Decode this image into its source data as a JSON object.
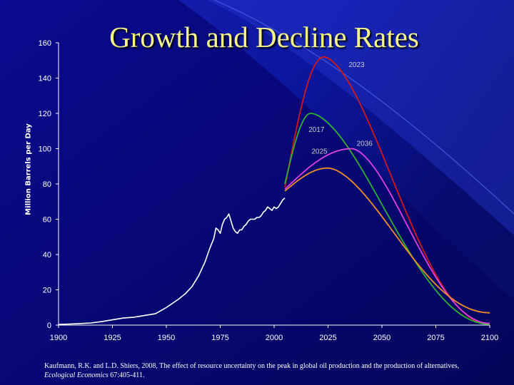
{
  "title": "Growth and Decline Rates",
  "chart_data": {
    "type": "line",
    "ylabel": "Million Barrels per Day",
    "xlabel": "",
    "xlim": [
      1900,
      2100
    ],
    "ylim": [
      0,
      160
    ],
    "x_ticks": [
      1900,
      1925,
      1950,
      1975,
      2000,
      2025,
      2050,
      2075,
      2100
    ],
    "y_ticks": [
      0,
      20,
      40,
      60,
      80,
      100,
      120,
      140,
      160
    ],
    "grid": false,
    "legend": "none",
    "historical": {
      "color": "#ffffff",
      "x": [
        1900,
        1905,
        1910,
        1915,
        1920,
        1925,
        1930,
        1935,
        1940,
        1945,
        1950,
        1953,
        1956,
        1959,
        1962,
        1965,
        1968,
        1970,
        1972,
        1973,
        1974,
        1975,
        1976,
        1977,
        1978,
        1979,
        1980,
        1981,
        1982,
        1983,
        1984,
        1985,
        1986,
        1987,
        1988,
        1989,
        1990,
        1991,
        1992,
        1993,
        1994,
        1995,
        1996,
        1997,
        1998,
        1999,
        2000,
        2001,
        2002,
        2003,
        2004,
        2005
      ],
      "y": [
        0.4,
        0.6,
        0.9,
        1.2,
        2,
        3,
        4,
        4.5,
        5.5,
        6.5,
        10,
        12.5,
        15,
        18,
        22,
        28,
        36,
        43,
        49,
        55,
        54,
        52,
        57,
        60,
        61,
        63,
        59,
        55,
        53,
        52,
        54,
        54,
        56,
        57,
        59,
        60,
        60,
        60,
        61,
        61,
        62,
        64,
        65,
        67,
        66,
        65,
        67,
        66,
        67,
        69,
        71,
        72
      ]
    },
    "projections": [
      {
        "name": "2023",
        "color": "#d01818",
        "start": [
          2005,
          78
        ],
        "peak_year": 2023,
        "peak": 152,
        "end": [
          2100,
          0.5
        ]
      },
      {
        "name": "2017",
        "color": "#30b030",
        "start": [
          2005,
          80
        ],
        "peak_year": 2017,
        "peak": 120,
        "end": [
          2100,
          0.5
        ]
      },
      {
        "name": "2036",
        "color": "#e040e0",
        "start": [
          2005,
          77
        ],
        "peak_year": 2036,
        "peak": 100,
        "end": [
          2100,
          1
        ]
      },
      {
        "name": "2025",
        "color": "#f08c28",
        "start": [
          2005,
          76
        ],
        "peak_year": 2025,
        "peak": 89,
        "end": [
          2100,
          7
        ]
      }
    ]
  },
  "citation": {
    "text": "Kaufmann, R.K. and L.D. Shiers, 2008, The effect of resource uncertainty on the peak in global oil production and the production of alternatives,",
    "journal": "Ecological Economics",
    "ref": " 67:405-411."
  }
}
